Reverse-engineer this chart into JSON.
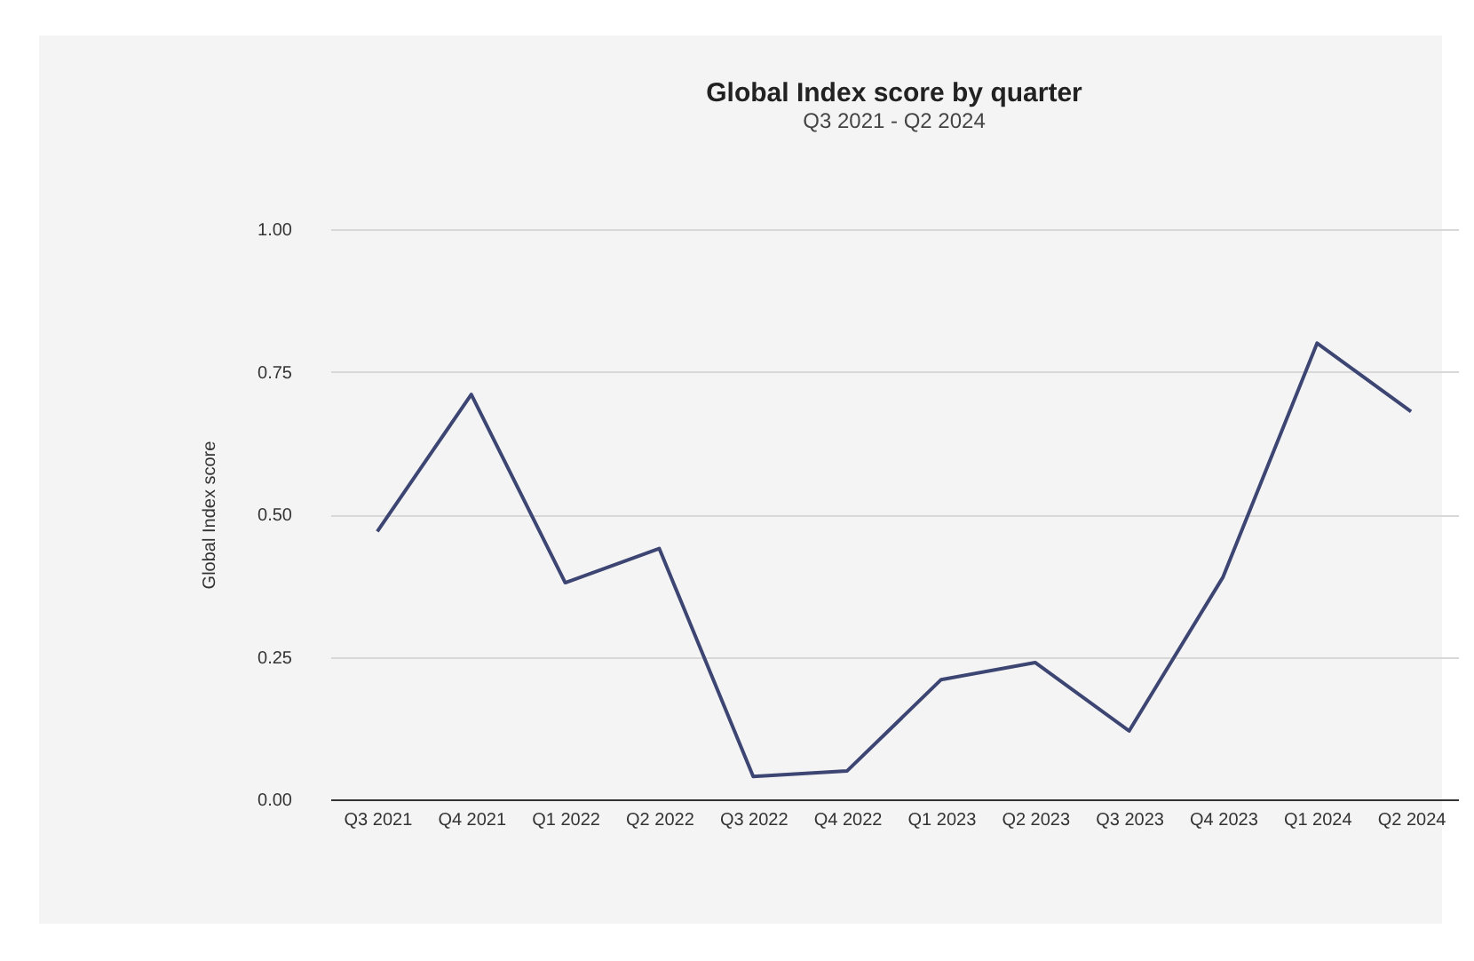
{
  "chart_data": {
    "type": "line",
    "title": "Global Index score by quarter",
    "subtitle": "Q3 2021 - Q2 2024",
    "ylabel": "Global Index score",
    "categories": [
      "Q3 2021",
      "Q4 2021",
      "Q1 2022",
      "Q2 2022",
      "Q3 2022",
      "Q4 2022",
      "Q1 2023",
      "Q2 2023",
      "Q3 2023",
      "Q4 2023",
      "Q1 2024",
      "Q2 2024"
    ],
    "series": [
      {
        "color": "#3d4573",
        "values": [
          0.47,
          0.71,
          0.38,
          0.44,
          0.04,
          0.05,
          0.21,
          0.24,
          0.12,
          0.39,
          0.8,
          0.68
        ]
      }
    ],
    "ylim": [
      0,
      1
    ],
    "yticks": [
      {
        "value": 0,
        "label": "0.00"
      },
      {
        "value": 0.25,
        "label": "0.25"
      },
      {
        "value": 0.5,
        "label": "0.50"
      },
      {
        "value": 0.75,
        "label": "0.75"
      },
      {
        "value": 1,
        "label": "1.00"
      }
    ],
    "grid": "y",
    "legend": false,
    "marker": "none",
    "line_style": "solid"
  }
}
